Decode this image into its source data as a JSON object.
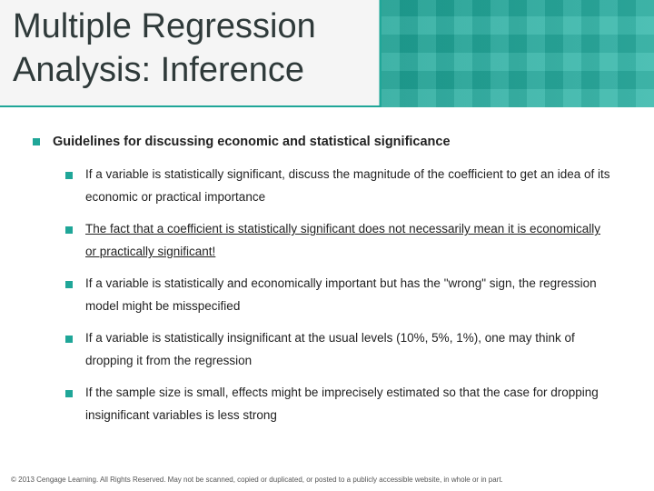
{
  "header": {
    "title_line1": "Multiple Regression",
    "title_line2": "Analysis: Inference"
  },
  "colors": {
    "accent": "#1fa698",
    "bullet": "#1fa698",
    "title_text": "#2f3a3a",
    "body_text": "#222222",
    "background": "#ffffff"
  },
  "typography": {
    "title_fontsize": 38,
    "heading_fontsize": 14.5,
    "body_fontsize": 13.5,
    "footer_fontsize": 8,
    "font_family": "Verdana"
  },
  "content": {
    "heading": "Guidelines for discussing economic and statistical significance",
    "bullets": [
      {
        "text": "If a variable is statistically significant, discuss the magnitude of the coefficient to get an idea of its economic or practical importance",
        "underline": false
      },
      {
        "text": "The fact that a coefficient is statistically significant does not necessarily mean it is economically or practically significant!",
        "underline": true
      },
      {
        "text": "If a variable is statistically and economically important but has the \"wrong\" sign, the regression model might be misspecified",
        "underline": false
      },
      {
        "text": "If a variable is statistically insignificant at the usual levels (10%, 5%, 1%), one may think of dropping it from the regression",
        "underline": false
      },
      {
        "text": "If the sample size is small, effects might be imprecisely estimated so that the case for dropping insignificant variables is less strong",
        "underline": false
      }
    ]
  },
  "footer": {
    "copyright": "© 2013 Cengage Learning. All Rights Reserved. May not be scanned, copied or duplicated, or posted to a publicly accessible website, in whole or in part."
  }
}
